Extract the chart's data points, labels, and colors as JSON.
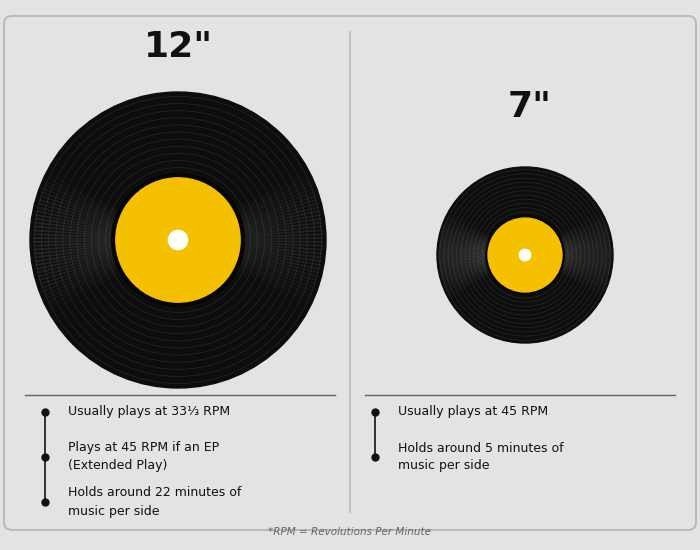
{
  "bg_color": "#e3e3e3",
  "panel_bg": "#e3e3e3",
  "record_black": "#0d0d0d",
  "label_yellow": "#f5c000",
  "label_white": "#ffffff",
  "text_color": "#111111",
  "divider_color": "#666666",
  "title_12": "12\"",
  "title_7": "7\"",
  "bullet_12": [
    "Usually plays at 33⅓ RPM",
    "Plays at 45 RPM if an EP\n(Extended Play)",
    "Holds around 22 minutes of\nmusic per side"
  ],
  "bullet_7": [
    "Usually plays at 45 RPM",
    "Holds around 5 minutes of\nmusic per side"
  ],
  "footnote": "*RPM = Revolutions Per Minute"
}
